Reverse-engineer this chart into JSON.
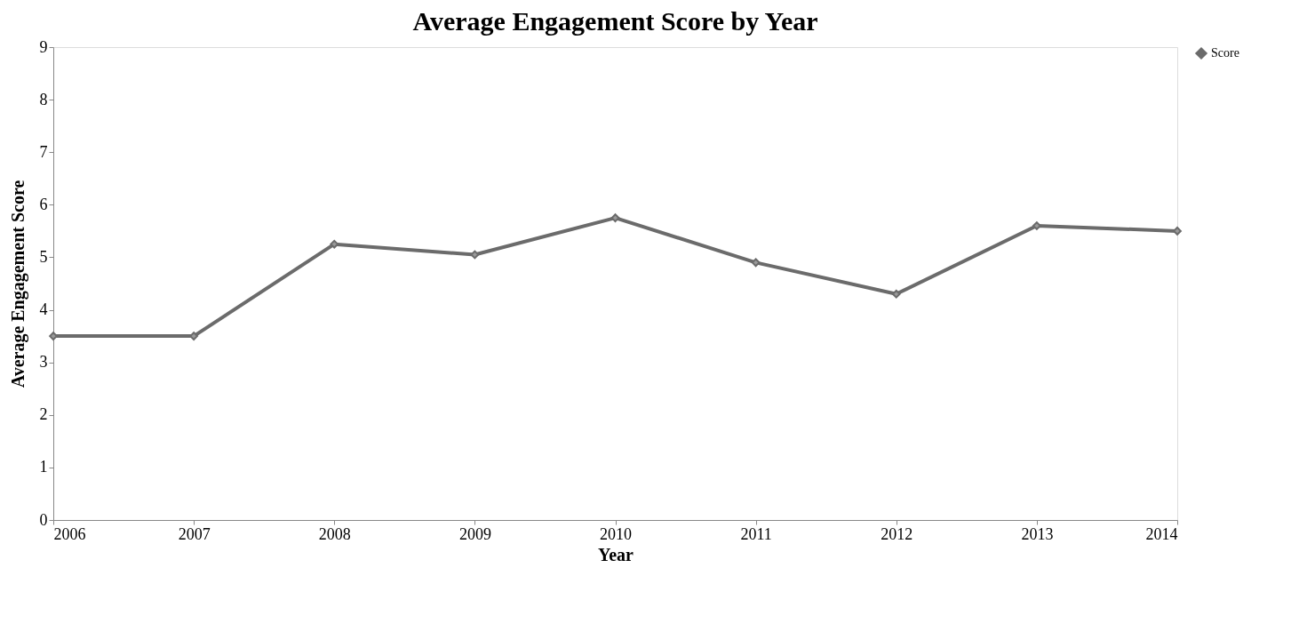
{
  "chart_data": {
    "type": "line",
    "title": "Average Engagement Score by Year",
    "xlabel": "Year",
    "ylabel": "Average Engagement Score",
    "x": [
      2006,
      2007,
      2008,
      2009,
      2010,
      2011,
      2012,
      2013,
      2014
    ],
    "series": [
      {
        "name": "Score",
        "color": "#6b6b6b",
        "values": [
          3.5,
          3.5,
          5.25,
          5.05,
          5.75,
          4.9,
          4.3,
          5.6,
          5.5
        ]
      }
    ],
    "xlim": [
      2006,
      2014
    ],
    "xticks": [
      2006,
      2007,
      2008,
      2009,
      2010,
      2011,
      2012,
      2013,
      2014
    ],
    "ylim": [
      0,
      9
    ],
    "yticks": [
      0,
      1,
      2,
      3,
      4,
      5,
      6,
      7,
      8,
      9
    ],
    "grid": false,
    "legend": "right",
    "marker": "diamond",
    "line_style": "solid"
  }
}
